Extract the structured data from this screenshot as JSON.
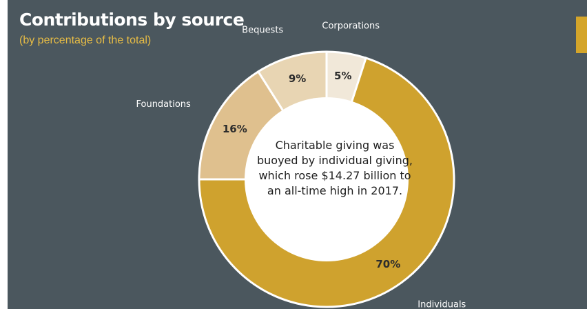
{
  "header": {
    "title": "Contributions by source",
    "subtitle": "(by percentage of the total)"
  },
  "note": "Charitable giving was buoyed by individual giving, which rose $14.27 billion to an all-time high in 2017.",
  "chart_data": {
    "type": "pie",
    "title": "Contributions by source",
    "subtitle": "(by percentage of the total)",
    "categories": [
      "Individuals",
      "Foundations",
      "Bequests",
      "Corporations"
    ],
    "values": [
      70,
      16,
      9,
      5
    ],
    "value_labels": [
      "70%",
      "16%",
      "9%",
      "5%"
    ],
    "colors": [
      "#cfa22e",
      "#dfc08e",
      "#e8d5b3",
      "#f1e8d9"
    ],
    "start_category": "Corporations",
    "direction": "clockwise"
  },
  "colors": {
    "background": "#4b575e",
    "title": "#ffffff",
    "subtitle": "#e7bc45",
    "accent": "#d4a52a",
    "center_fill": "#ffffff"
  }
}
